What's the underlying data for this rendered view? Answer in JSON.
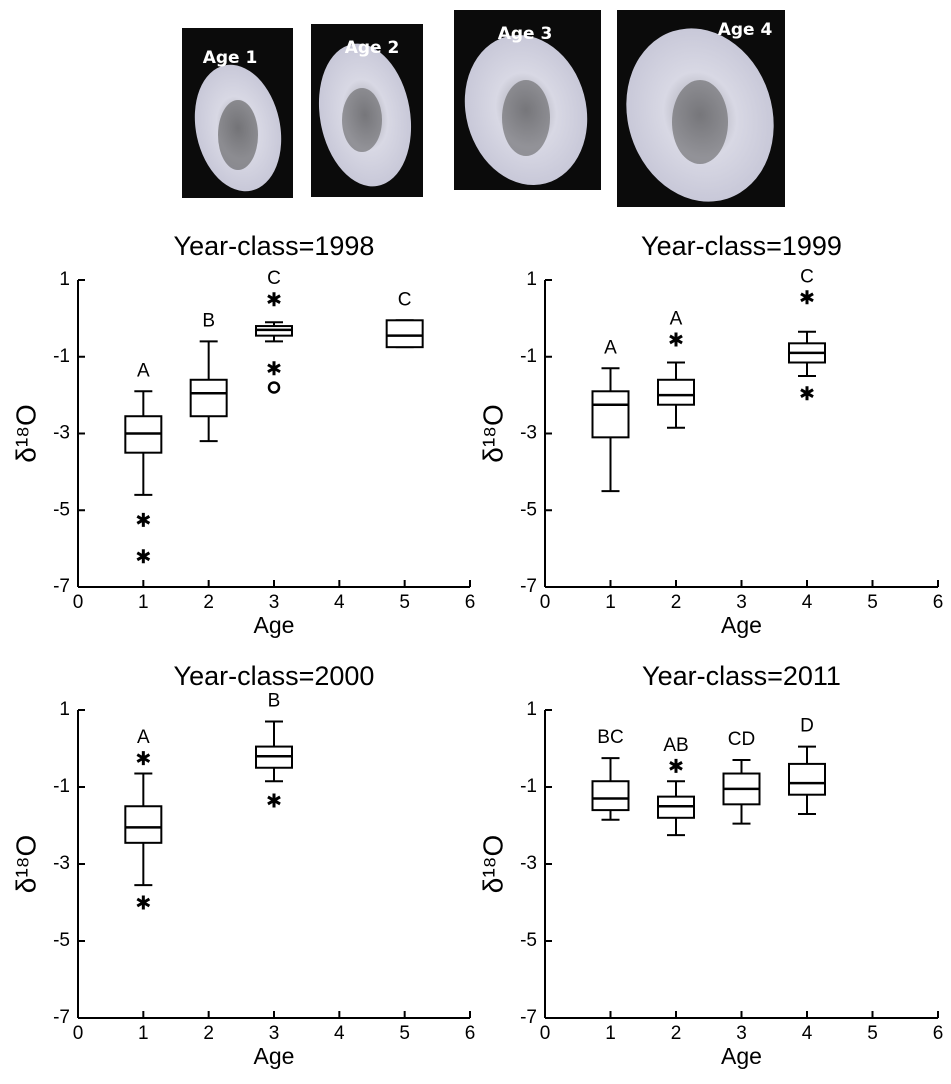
{
  "photos": [
    {
      "label": "Age 1"
    },
    {
      "label": "Age 2"
    },
    {
      "label": "Age 3"
    },
    {
      "label": "Age 4"
    }
  ],
  "chart_data": [
    {
      "type": "box",
      "title": "Year-class=1998",
      "xlabel": "Age",
      "ylabel": "δ¹⁸O",
      "xlim": [
        0,
        6
      ],
      "xticks": [
        0,
        1,
        2,
        3,
        4,
        5,
        6
      ],
      "ylim": [
        -7,
        1
      ],
      "yticks": [
        -7,
        -5,
        -3,
        -1,
        1
      ],
      "boxes": [
        {
          "x": 1,
          "low": -4.6,
          "q1": -3.5,
          "median": -3.0,
          "q3": -2.55,
          "high": -1.9,
          "label": "A",
          "outliers": [
            {
              "value": -5.25,
              "marker": "asterisk"
            },
            {
              "value": -6.2,
              "marker": "asterisk"
            }
          ]
        },
        {
          "x": 2,
          "low": -3.2,
          "q1": -2.55,
          "median": -1.95,
          "q3": -1.6,
          "high": -0.6,
          "label": "B",
          "outliers": []
        },
        {
          "x": 3,
          "low": -0.6,
          "q1": -0.45,
          "median": -0.3,
          "q3": -0.2,
          "high": -0.1,
          "label": "C",
          "outliers": [
            {
              "value": 0.5,
              "marker": "asterisk"
            },
            {
              "value": -1.3,
              "marker": "asterisk"
            },
            {
              "value": -1.8,
              "marker": "circle"
            }
          ]
        },
        {
          "x": 5,
          "low": -0.75,
          "q1": -0.75,
          "median": -0.45,
          "q3": -0.05,
          "high": -0.05,
          "label": "C",
          "outliers": []
        }
      ]
    },
    {
      "type": "box",
      "title": "Year-class=1999",
      "xlabel": "Age",
      "ylabel": "δ¹⁸O",
      "xlim": [
        0,
        6
      ],
      "xticks": [
        0,
        1,
        2,
        3,
        4,
        5,
        6
      ],
      "ylim": [
        -7,
        1
      ],
      "yticks": [
        -7,
        -5,
        -3,
        -1,
        1
      ],
      "boxes": [
        {
          "x": 1,
          "low": -4.5,
          "q1": -3.1,
          "median": -2.25,
          "q3": -1.9,
          "high": -1.3,
          "label": "A",
          "outliers": []
        },
        {
          "x": 2,
          "low": -2.85,
          "q1": -2.25,
          "median": -2.0,
          "q3": -1.6,
          "high": -1.15,
          "label": "A",
          "outliers": [
            {
              "value": -0.55,
              "marker": "asterisk"
            }
          ]
        },
        {
          "x": 4,
          "low": -1.5,
          "q1": -1.15,
          "median": -0.9,
          "q3": -0.65,
          "high": -0.35,
          "label": "C",
          "outliers": [
            {
              "value": 0.55,
              "marker": "asterisk"
            },
            {
              "value": -1.95,
              "marker": "asterisk"
            }
          ]
        }
      ]
    },
    {
      "type": "box",
      "title": "Year-class=2000",
      "xlabel": "Age",
      "ylabel": "δ¹⁸O",
      "xlim": [
        0,
        6
      ],
      "xticks": [
        0,
        1,
        2,
        3,
        4,
        5,
        6
      ],
      "ylim": [
        -7,
        1
      ],
      "yticks": [
        -7,
        -5,
        -3,
        -1,
        1
      ],
      "boxes": [
        {
          "x": 1,
          "low": -3.55,
          "q1": -2.45,
          "median": -2.05,
          "q3": -1.5,
          "high": -0.65,
          "label": "A",
          "outliers": [
            {
              "value": -0.25,
              "marker": "asterisk"
            },
            {
              "value": -4.0,
              "marker": "asterisk"
            }
          ]
        },
        {
          "x": 3,
          "low": -0.85,
          "q1": -0.5,
          "median": -0.2,
          "q3": 0.05,
          "high": 0.7,
          "label": "B",
          "outliers": [
            {
              "value": -1.35,
              "marker": "asterisk"
            }
          ]
        }
      ]
    },
    {
      "type": "box",
      "title": "Year-class=2011",
      "xlabel": "Age",
      "ylabel": "δ¹⁸O",
      "xlim": [
        0,
        6
      ],
      "xticks": [
        0,
        1,
        2,
        3,
        4,
        5,
        6
      ],
      "ylim": [
        -7,
        1
      ],
      "yticks": [
        -7,
        -5,
        -3,
        -1,
        1
      ],
      "boxes": [
        {
          "x": 1,
          "low": -1.85,
          "q1": -1.6,
          "median": -1.3,
          "q3": -0.85,
          "high": -0.25,
          "label": "BC",
          "outliers": []
        },
        {
          "x": 2,
          "low": -2.25,
          "q1": -1.8,
          "median": -1.5,
          "q3": -1.25,
          "high": -0.85,
          "label": "AB",
          "outliers": [
            {
              "value": -0.45,
              "marker": "asterisk"
            }
          ]
        },
        {
          "x": 3,
          "low": -1.95,
          "q1": -1.45,
          "median": -1.05,
          "q3": -0.65,
          "high": -0.3,
          "label": "CD",
          "outliers": []
        },
        {
          "x": 4,
          "low": -1.7,
          "q1": -1.2,
          "median": -0.9,
          "q3": -0.4,
          "high": 0.05,
          "label": "D",
          "outliers": []
        }
      ]
    }
  ]
}
